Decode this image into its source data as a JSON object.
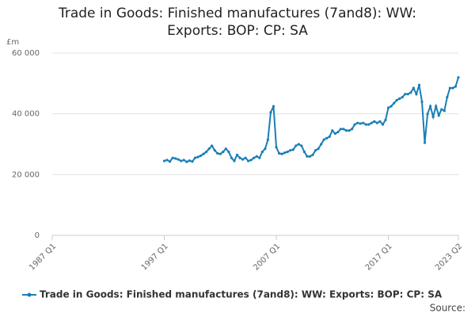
{
  "chart_data": {
    "type": "line",
    "title": "Trade in Goods: Finished manufactures (7and8): WW: Exports: BOP: CP: SA",
    "y_label": "£m",
    "source": "Source:",
    "xlim": [
      1987,
      2023.25
    ],
    "xticks": [
      {
        "value": 1987,
        "label": "1987 Q1"
      },
      {
        "value": 1997,
        "label": "1997 Q1"
      },
      {
        "value": 2007,
        "label": "2007 Q1"
      },
      {
        "value": 2017,
        "label": "2017 Q1"
      },
      {
        "value": 2023.25,
        "label": "2023 Q2"
      }
    ],
    "ylim": [
      0,
      60000
    ],
    "yticks": [
      0,
      {
        "value": 20000,
        "label": "20 000"
      },
      {
        "value": 40000,
        "label": "40 000"
      },
      {
        "value": 60000,
        "label": "60 000"
      }
    ],
    "grid": true,
    "x": [
      1997,
      1997.25,
      1997.5,
      1997.75,
      1998,
      1998.25,
      1998.5,
      1998.75,
      1999,
      1999.25,
      1999.5,
      1999.75,
      2000,
      2000.25,
      2000.5,
      2000.75,
      2001,
      2001.25,
      2001.5,
      2001.75,
      2002,
      2002.25,
      2002.5,
      2002.75,
      2003,
      2003.25,
      2003.5,
      2003.75,
      2004,
      2004.25,
      2004.5,
      2004.75,
      2005,
      2005.25,
      2005.5,
      2005.75,
      2006,
      2006.25,
      2006.5,
      2006.75,
      2007,
      2007.25,
      2007.5,
      2007.75,
      2008,
      2008.25,
      2008.5,
      2008.75,
      2009,
      2009.25,
      2009.5,
      2009.75,
      2010,
      2010.25,
      2010.5,
      2010.75,
      2011,
      2011.25,
      2011.5,
      2011.75,
      2012,
      2012.25,
      2012.5,
      2012.75,
      2013,
      2013.25,
      2013.5,
      2013.75,
      2014,
      2014.25,
      2014.5,
      2014.75,
      2015,
      2015.25,
      2015.5,
      2015.75,
      2016,
      2016.25,
      2016.5,
      2016.75,
      2017,
      2017.25,
      2017.5,
      2017.75,
      2018,
      2018.25,
      2018.5,
      2018.75,
      2019,
      2019.25,
      2019.5,
      2019.75,
      2020,
      2020.25,
      2020.5,
      2020.75,
      2021,
      2021.25,
      2021.5,
      2021.75,
      2022,
      2022.25,
      2022.5,
      2022.75,
      2023,
      2023.25
    ],
    "series": [
      {
        "name": "Trade in Goods: Finished manufactures (7and8): WW: Exports: BOP: CP: SA",
        "color": "#1a7eb6",
        "values": [
          24500,
          24800,
          24300,
          25500,
          25300,
          25000,
          24500,
          24800,
          24200,
          24600,
          24300,
          25500,
          25800,
          26200,
          26800,
          27500,
          28500,
          29500,
          28000,
          27000,
          26800,
          27500,
          28500,
          27500,
          25500,
          24500,
          26500,
          25500,
          25000,
          25500,
          24500,
          24800,
          25500,
          26000,
          25500,
          27500,
          28500,
          31500,
          40500,
          42500,
          29000,
          27000,
          26800,
          27200,
          27500,
          28000,
          28200,
          29500,
          30000,
          29500,
          27500,
          26000,
          26000,
          26500,
          28000,
          28500,
          30000,
          31500,
          32000,
          32500,
          34500,
          33500,
          34000,
          35000,
          35000,
          34500,
          34500,
          35000,
          36500,
          37000,
          36800,
          37000,
          36500,
          36500,
          37000,
          37500,
          37000,
          37500,
          36500,
          38000,
          42000,
          42500,
          43500,
          44500,
          45000,
          45500,
          46500,
          46500,
          47000,
          48500,
          46500,
          49500,
          44000,
          30500,
          40000,
          42500,
          39000,
          42500,
          39500,
          41500,
          41000,
          45500,
          48500,
          48500,
          49000,
          52000
        ]
      }
    ]
  }
}
